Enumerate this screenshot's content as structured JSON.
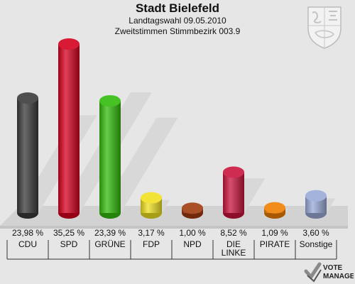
{
  "header": {
    "title": "Stadt Bielefeld",
    "subtitle1": "Landtagswahl 09.05.2010",
    "subtitle2": "Zweitstimmen Stimmbezirk 003.9"
  },
  "branding": {
    "line1": "VOTE",
    "line2": "MANAGER"
  },
  "chart_data": {
    "type": "bar",
    "categories": [
      "CDU",
      "SPD",
      "GRÜNE",
      "FDP",
      "NPD",
      "DIE LINKE",
      "PIRATE",
      "Sonstige"
    ],
    "category_lines": [
      [
        "CDU"
      ],
      [
        "SPD"
      ],
      [
        "GRÜNE"
      ],
      [
        "FDP"
      ],
      [
        "NPD"
      ],
      [
        "DIE",
        "LINKE"
      ],
      [
        "PIRATE"
      ],
      [
        "Sonstige"
      ]
    ],
    "values": [
      23.98,
      35.25,
      23.39,
      3.17,
      1.0,
      8.52,
      1.09,
      3.6
    ],
    "value_labels": [
      "23,98 %",
      "35,25 %",
      "23,39 %",
      "3,17 %",
      "1,00 %",
      "8,52 %",
      "1,09 %",
      "3,60 %"
    ],
    "colors": [
      "#3a3a3a",
      "#d5001f",
      "#33bb0d",
      "#f0e020",
      "#a03c10",
      "#c8143c",
      "#f07f00",
      "#9aaad8"
    ],
    "ylim": [
      0,
      35.25
    ]
  }
}
